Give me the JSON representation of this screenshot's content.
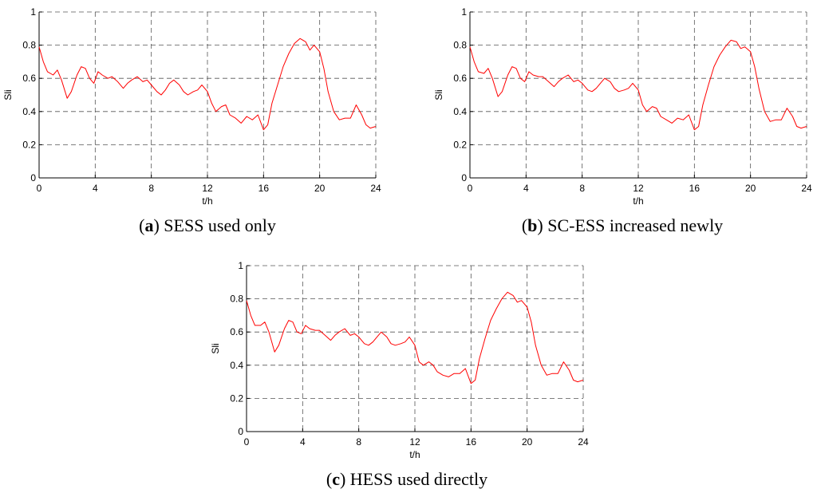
{
  "chart_data": [
    {
      "type": "line",
      "panel_letter": "a",
      "caption": "SESS used only",
      "xlabel": "t/h",
      "ylabel": "Sli",
      "xlim": [
        0,
        24
      ],
      "ylim": [
        0,
        1
      ],
      "xticks": [
        0,
        4,
        8,
        12,
        16,
        20,
        24
      ],
      "yticks": [
        0,
        0.2,
        0.4,
        0.6,
        0.8,
        1
      ],
      "ytick_labels": [
        "0",
        "0.2",
        "0.4",
        "0.6",
        "0.8",
        "1"
      ],
      "grid": true,
      "series": [
        {
          "color": "#ff0000",
          "x": [
            0,
            0.3,
            0.6,
            1,
            1.3,
            1.6,
            2,
            2.3,
            2.7,
            3,
            3.3,
            3.6,
            3.9,
            4.2,
            4.5,
            4.9,
            5.2,
            5.6,
            6,
            6.3,
            6.6,
            7,
            7.4,
            7.7,
            8,
            8.4,
            8.7,
            9,
            9.3,
            9.6,
            10,
            10.3,
            10.6,
            11,
            11.3,
            11.6,
            12,
            12.3,
            12.6,
            13,
            13.3,
            13.6,
            14,
            14.4,
            14.8,
            15.2,
            15.6,
            16,
            16.3,
            16.6,
            17,
            17.4,
            17.8,
            18.2,
            18.6,
            19,
            19.3,
            19.6,
            20,
            20.3,
            20.6,
            21,
            21.4,
            21.8,
            22.2,
            22.6,
            23,
            23.3,
            23.6,
            24
          ],
          "y": [
            0.79,
            0.7,
            0.64,
            0.62,
            0.65,
            0.59,
            0.48,
            0.52,
            0.62,
            0.67,
            0.66,
            0.6,
            0.57,
            0.64,
            0.62,
            0.6,
            0.61,
            0.58,
            0.54,
            0.57,
            0.59,
            0.61,
            0.58,
            0.59,
            0.56,
            0.52,
            0.5,
            0.53,
            0.57,
            0.59,
            0.56,
            0.52,
            0.5,
            0.52,
            0.53,
            0.56,
            0.52,
            0.45,
            0.4,
            0.43,
            0.44,
            0.38,
            0.36,
            0.33,
            0.37,
            0.35,
            0.38,
            0.29,
            0.32,
            0.45,
            0.56,
            0.67,
            0.75,
            0.81,
            0.84,
            0.82,
            0.77,
            0.8,
            0.76,
            0.66,
            0.52,
            0.4,
            0.35,
            0.36,
            0.36,
            0.44,
            0.38,
            0.32,
            0.3,
            0.31
          ]
        }
      ]
    },
    {
      "type": "line",
      "panel_letter": "b",
      "caption": "SC-ESS increased newly",
      "xlabel": "t/h",
      "ylabel": "Sli",
      "xlim": [
        0,
        24
      ],
      "ylim": [
        0,
        1
      ],
      "xticks": [
        0,
        4,
        8,
        12,
        16,
        20,
        24
      ],
      "yticks": [
        0,
        0.2,
        0.4,
        0.6,
        0.8,
        1
      ],
      "ytick_labels": [
        "0",
        "0.2",
        "0.4",
        "0.6",
        "0.8",
        "1"
      ],
      "grid": true,
      "series": [
        {
          "color": "#ff0000",
          "x": [
            0,
            0.3,
            0.6,
            1,
            1.3,
            1.6,
            2,
            2.3,
            2.7,
            3,
            3.3,
            3.6,
            3.9,
            4.2,
            4.5,
            4.9,
            5.2,
            5.6,
            6,
            6.3,
            6.6,
            7,
            7.4,
            7.7,
            8,
            8.4,
            8.7,
            9,
            9.3,
            9.6,
            10,
            10.3,
            10.6,
            11,
            11.3,
            11.6,
            12,
            12.3,
            12.6,
            13,
            13.3,
            13.6,
            14,
            14.4,
            14.8,
            15.2,
            15.6,
            16,
            16.3,
            16.6,
            17,
            17.4,
            17.8,
            18.2,
            18.6,
            19,
            19.3,
            19.6,
            20,
            20.3,
            20.6,
            21,
            21.4,
            21.8,
            22.2,
            22.6,
            23,
            23.3,
            23.6,
            24
          ],
          "y": [
            0.79,
            0.7,
            0.64,
            0.63,
            0.66,
            0.6,
            0.49,
            0.52,
            0.62,
            0.67,
            0.66,
            0.6,
            0.58,
            0.64,
            0.62,
            0.61,
            0.61,
            0.58,
            0.55,
            0.58,
            0.6,
            0.62,
            0.58,
            0.59,
            0.57,
            0.53,
            0.52,
            0.54,
            0.57,
            0.6,
            0.58,
            0.54,
            0.52,
            0.53,
            0.54,
            0.57,
            0.53,
            0.44,
            0.4,
            0.43,
            0.42,
            0.37,
            0.35,
            0.33,
            0.36,
            0.35,
            0.38,
            0.29,
            0.31,
            0.44,
            0.56,
            0.67,
            0.74,
            0.79,
            0.83,
            0.82,
            0.78,
            0.79,
            0.76,
            0.67,
            0.54,
            0.4,
            0.34,
            0.35,
            0.35,
            0.42,
            0.37,
            0.31,
            0.3,
            0.31
          ]
        }
      ]
    },
    {
      "type": "line",
      "panel_letter": "c",
      "caption": "HESS used directly",
      "xlabel": "t/h",
      "ylabel": "Sli",
      "xlim": [
        0,
        24
      ],
      "ylim": [
        0,
        1
      ],
      "xticks": [
        0,
        4,
        8,
        12,
        16,
        20,
        24
      ],
      "yticks": [
        0,
        0.2,
        0.4,
        0.6,
        0.8,
        1
      ],
      "ytick_labels": [
        "0",
        "0.2",
        "0.4",
        "0.6",
        "0.8",
        "1"
      ],
      "grid": true,
      "series": [
        {
          "color": "#ff0000",
          "x": [
            0,
            0.3,
            0.6,
            1,
            1.3,
            1.6,
            2,
            2.3,
            2.7,
            3,
            3.3,
            3.6,
            3.9,
            4.2,
            4.5,
            4.9,
            5.2,
            5.6,
            6,
            6.3,
            6.6,
            7,
            7.4,
            7.7,
            8,
            8.4,
            8.7,
            9,
            9.3,
            9.6,
            10,
            10.3,
            10.6,
            11,
            11.3,
            11.6,
            12,
            12.3,
            12.6,
            13,
            13.3,
            13.6,
            14,
            14.4,
            14.8,
            15.2,
            15.6,
            16,
            16.3,
            16.6,
            17,
            17.4,
            17.8,
            18.2,
            18.6,
            19,
            19.3,
            19.6,
            20,
            20.3,
            20.6,
            21,
            21.4,
            21.8,
            22.2,
            22.6,
            23,
            23.3,
            23.6,
            24
          ],
          "y": [
            0.79,
            0.7,
            0.64,
            0.64,
            0.66,
            0.6,
            0.48,
            0.52,
            0.62,
            0.67,
            0.66,
            0.6,
            0.59,
            0.64,
            0.62,
            0.61,
            0.61,
            0.58,
            0.55,
            0.58,
            0.6,
            0.62,
            0.58,
            0.59,
            0.57,
            0.53,
            0.52,
            0.54,
            0.57,
            0.6,
            0.57,
            0.53,
            0.52,
            0.53,
            0.54,
            0.57,
            0.52,
            0.42,
            0.4,
            0.42,
            0.4,
            0.36,
            0.34,
            0.33,
            0.35,
            0.35,
            0.38,
            0.29,
            0.31,
            0.44,
            0.56,
            0.67,
            0.74,
            0.8,
            0.84,
            0.82,
            0.78,
            0.79,
            0.75,
            0.66,
            0.52,
            0.4,
            0.34,
            0.35,
            0.35,
            0.42,
            0.37,
            0.31,
            0.3,
            0.31
          ]
        }
      ]
    }
  ]
}
